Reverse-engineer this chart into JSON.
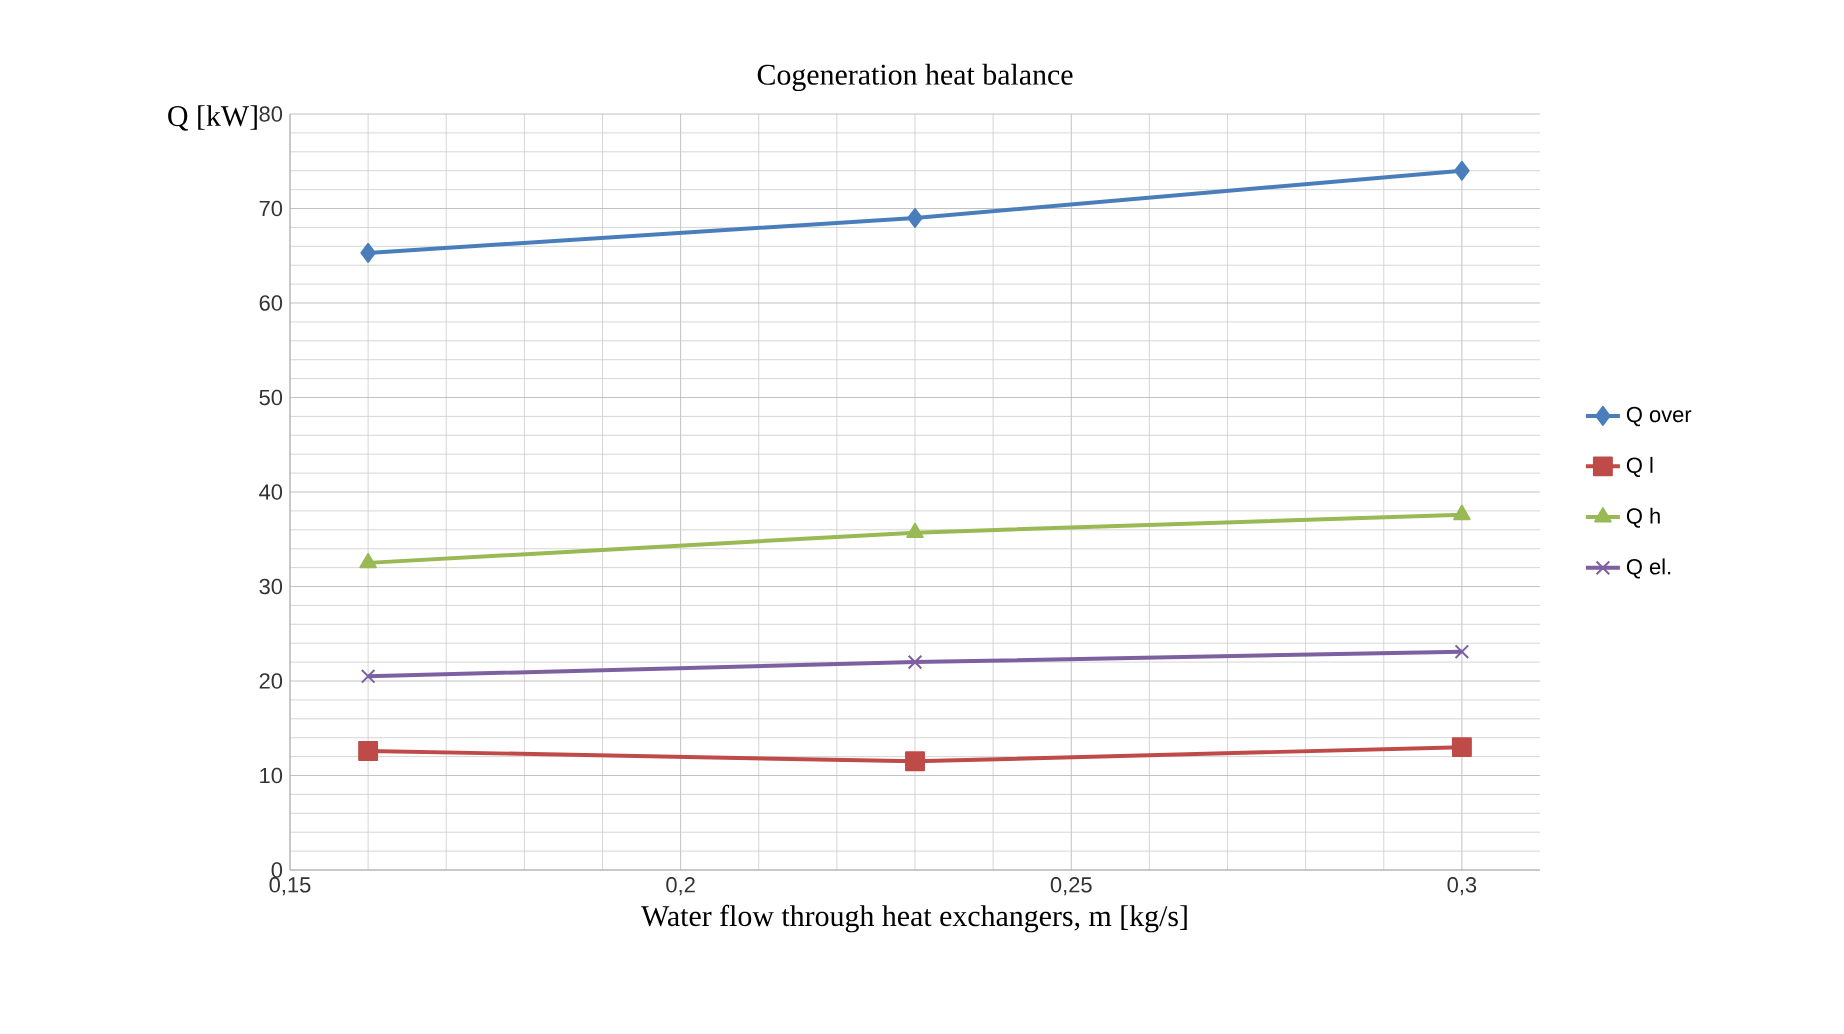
{
  "chart_data": {
    "type": "line",
    "title": "Cogeneration heat balance",
    "xlabel": "Water flow through heat exchangers, m [kg/s]",
    "ylabel": "Q [kW]",
    "x": [
      0.16,
      0.23,
      0.3
    ],
    "series": [
      {
        "name": "Q over",
        "color": "#4a7ebb",
        "marker": "diamond",
        "values": [
          65.3,
          69,
          74
        ]
      },
      {
        "name": "Q l",
        "color": "#be4b48",
        "marker": "square",
        "values": [
          12.6,
          11.5,
          13
        ]
      },
      {
        "name": "Q h",
        "color": "#98b954",
        "marker": "triangle",
        "values": [
          32.5,
          35.7,
          37.6
        ]
      },
      {
        "name": "Q el.",
        "color": "#7d60a0",
        "marker": "cross",
        "values": [
          20.5,
          22,
          23.1
        ]
      }
    ],
    "xlim": [
      0.15,
      0.31
    ],
    "xticks": [
      {
        "value": 0.15,
        "label": "0,15"
      },
      {
        "value": 0.2,
        "label": "0,2"
      },
      {
        "value": 0.25,
        "label": "0,25"
      },
      {
        "value": 0.3,
        "label": "0,3"
      }
    ],
    "ylim": [
      0,
      80
    ],
    "yticks": [
      0,
      10,
      20,
      30,
      40,
      50,
      60,
      70,
      80
    ],
    "grid": true,
    "legend": "right",
    "line_style": "solid"
  }
}
